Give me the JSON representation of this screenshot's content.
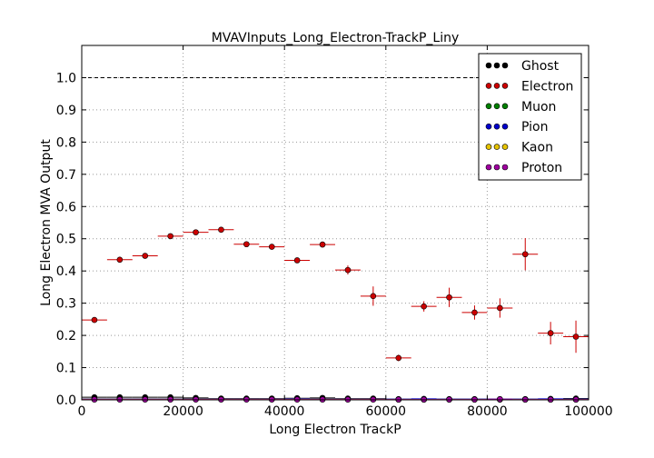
{
  "chart_data": {
    "type": "scatter",
    "title": "MVAVInputs_Long_Electron-TrackP_Liny",
    "xlabel": "Long Electron TrackP",
    "ylabel": "Long Electron MVA Output",
    "xlim": [
      0,
      100000
    ],
    "ylim": [
      0,
      1.1
    ],
    "x_ticks": [
      0,
      20000,
      40000,
      60000,
      80000,
      100000
    ],
    "x_tick_labels": [
      "0",
      "20000",
      "40000",
      "60000",
      "80000",
      "100000"
    ],
    "y_ticks": [
      0.0,
      0.1,
      0.2,
      0.3,
      0.4,
      0.5,
      0.6,
      0.7,
      0.8,
      0.9,
      1.0
    ],
    "y_tick_labels": [
      "0.0",
      "0.1",
      "0.2",
      "0.3",
      "0.4",
      "0.5",
      "0.6",
      "0.7",
      "0.8",
      "0.9",
      "1.0"
    ],
    "reference_line": 1.0,
    "grid": true,
    "legend_position": "top-right",
    "bin_half_width": 2500,
    "series": [
      {
        "name": "Ghost",
        "color": "#000000",
        "x": [
          2500,
          7500,
          12500,
          17500,
          22500,
          27500,
          32500,
          37500,
          42500,
          47500,
          52500,
          57500,
          62500,
          67500,
          72500,
          77500,
          82500,
          87500,
          92500,
          97500
        ],
        "y": [
          0.008,
          0.008,
          0.008,
          0.008,
          0.006,
          0.004,
          0.004,
          0.004,
          0.005,
          0.006,
          0.004,
          0.004,
          0.002,
          0.002,
          0.002,
          0.002,
          0.002,
          0.002,
          0.002,
          0.004
        ],
        "yerr": [
          0.002,
          0.002,
          0.002,
          0.002,
          0.002,
          0.002,
          0.002,
          0.002,
          0.002,
          0.002,
          0.002,
          0.002,
          0.002,
          0.002,
          0.002,
          0.002,
          0.002,
          0.002,
          0.002,
          0.002
        ]
      },
      {
        "name": "Electron",
        "color": "#cc0000",
        "x": [
          2500,
          7500,
          12500,
          17500,
          22500,
          27500,
          32500,
          37500,
          42500,
          47500,
          52500,
          57500,
          62500,
          67500,
          72500,
          77500,
          82500,
          87500,
          92500,
          97500
        ],
        "y": [
          0.248,
          0.435,
          0.447,
          0.508,
          0.52,
          0.528,
          0.483,
          0.475,
          0.433,
          0.482,
          0.403,
          0.322,
          0.13,
          0.29,
          0.318,
          0.271,
          0.285,
          0.452,
          0.207,
          0.196
        ],
        "yerr": [
          0.004,
          0.004,
          0.005,
          0.005,
          0.005,
          0.005,
          0.006,
          0.007,
          0.008,
          0.009,
          0.014,
          0.03,
          0.01,
          0.016,
          0.03,
          0.022,
          0.03,
          0.05,
          0.035,
          0.05
        ]
      },
      {
        "name": "Muon",
        "color": "#008000",
        "x": [
          2500,
          7500,
          12500,
          17500,
          22500,
          27500,
          32500,
          37500,
          42500,
          47500,
          52500,
          57500,
          62500,
          67500,
          72500,
          77500,
          82500,
          87500,
          92500,
          97500
        ],
        "y": [
          0.002,
          0.002,
          0.002,
          0.002,
          0.002,
          0.002,
          0.002,
          0.002,
          0.002,
          0.002,
          0.002,
          0.002,
          0.001,
          0.001,
          0.001,
          0.001,
          0.001,
          0.001,
          0.001,
          0.001
        ],
        "yerr": [
          0.001,
          0.001,
          0.001,
          0.001,
          0.001,
          0.001,
          0.001,
          0.001,
          0.001,
          0.001,
          0.001,
          0.001,
          0.001,
          0.001,
          0.001,
          0.001,
          0.001,
          0.001,
          0.001,
          0.001
        ]
      },
      {
        "name": "Pion",
        "color": "#0000cc",
        "x": [
          2500,
          7500,
          12500,
          17500,
          22500,
          27500,
          32500,
          37500,
          42500,
          47500,
          52500,
          57500,
          62500,
          67500,
          72500,
          77500,
          82500,
          87500,
          92500,
          97500
        ],
        "y": [
          0.003,
          0.003,
          0.003,
          0.003,
          0.003,
          0.003,
          0.003,
          0.003,
          0.004,
          0.003,
          0.003,
          0.003,
          0.002,
          0.003,
          0.002,
          0.002,
          0.002,
          0.002,
          0.003,
          0.002
        ],
        "yerr": [
          0.001,
          0.001,
          0.001,
          0.001,
          0.001,
          0.001,
          0.001,
          0.001,
          0.001,
          0.001,
          0.001,
          0.001,
          0.001,
          0.001,
          0.001,
          0.001,
          0.001,
          0.001,
          0.001,
          0.001
        ]
      },
      {
        "name": "Kaon",
        "color": "#e6c300",
        "x": [
          2500,
          7500,
          12500,
          17500,
          22500,
          27500,
          32500,
          37500,
          42500,
          47500,
          52500,
          57500,
          62500,
          67500,
          72500,
          77500,
          82500,
          87500,
          92500,
          97500
        ],
        "y": [
          0.002,
          0.002,
          0.002,
          0.002,
          0.002,
          0.002,
          0.002,
          0.002,
          0.002,
          0.002,
          0.002,
          0.002,
          0.001,
          0.001,
          0.001,
          0.001,
          0.001,
          0.001,
          0.001,
          0.001
        ],
        "yerr": [
          0.001,
          0.001,
          0.001,
          0.001,
          0.001,
          0.001,
          0.001,
          0.001,
          0.001,
          0.001,
          0.001,
          0.001,
          0.001,
          0.001,
          0.001,
          0.001,
          0.001,
          0.001,
          0.001,
          0.001
        ]
      },
      {
        "name": "Proton",
        "color": "#a000a0",
        "x": [
          2500,
          7500,
          12500,
          17500,
          22500,
          27500,
          32500,
          37500,
          42500,
          47500,
          52500,
          57500,
          62500,
          67500,
          72500,
          77500,
          82500,
          87500,
          92500,
          97500
        ],
        "y": [
          0.001,
          0.001,
          0.001,
          0.001,
          0.001,
          0.001,
          0.001,
          0.001,
          0.001,
          0.001,
          0.001,
          0.001,
          0.001,
          0.001,
          0.001,
          0.001,
          0.002,
          0.001,
          0.001,
          0.001
        ],
        "yerr": [
          0.001,
          0.001,
          0.001,
          0.001,
          0.001,
          0.001,
          0.001,
          0.001,
          0.001,
          0.001,
          0.001,
          0.001,
          0.001,
          0.001,
          0.001,
          0.001,
          0.001,
          0.001,
          0.001,
          0.001
        ]
      }
    ]
  }
}
